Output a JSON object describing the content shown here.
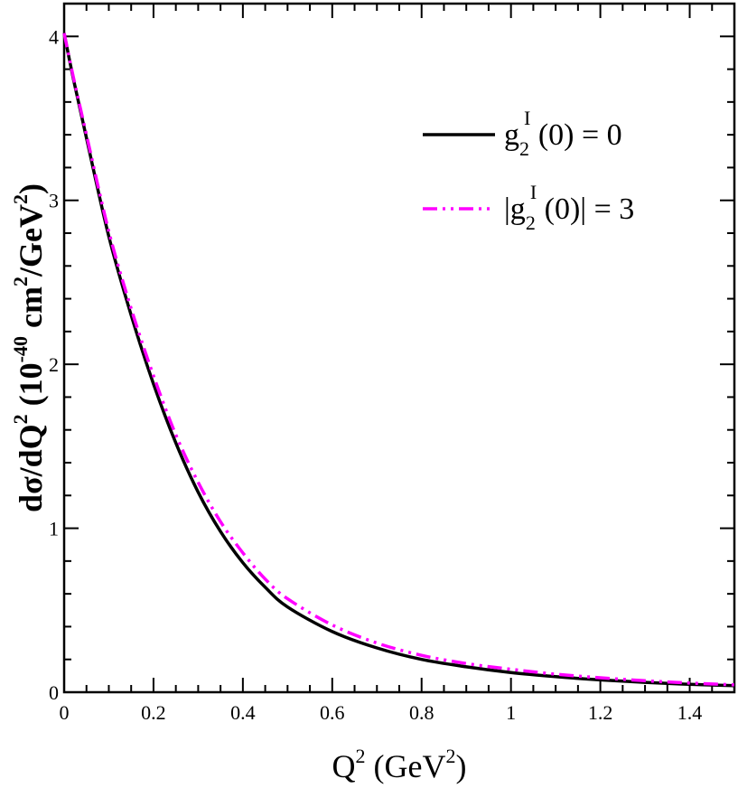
{
  "chart_data": {
    "type": "line",
    "xlabel": {
      "base": "Q",
      "sup": "2",
      "unit_open": " (GeV",
      "unit_sup": "2",
      "unit_close": ")"
    },
    "ylabel": {
      "part1": "dσ/dQ",
      "sup1": "2",
      "part2": " (10",
      "sup2": "-40",
      "part3": " cm",
      "sup3": "2",
      "part4": "/GeV",
      "sup4": "2",
      "part5": ")"
    },
    "xlim": [
      0,
      1.5
    ],
    "ylim": [
      0,
      4.2
    ],
    "x_major_ticks": [
      0,
      0.2,
      0.4,
      0.6,
      0.8,
      1,
      1.2,
      1.4
    ],
    "x_tick_labels": [
      "0",
      "0.2",
      "0.4",
      "0.6",
      "0.8",
      "1",
      "1.2",
      "1.4"
    ],
    "y_major_ticks": [
      0,
      1,
      2,
      3,
      4
    ],
    "y_tick_labels": [
      "0",
      "1",
      "2",
      "3",
      "4"
    ],
    "grid": false,
    "legend_position": "top-right",
    "series": [
      {
        "name": {
          "pre": "g",
          "sub": "2",
          "sup": "I",
          "post": " (0) = 0"
        },
        "color": "#000000",
        "dash": "solid",
        "x": [
          0,
          0.02,
          0.05,
          0.1,
          0.15,
          0.2,
          0.25,
          0.3,
          0.35,
          0.4,
          0.45,
          0.5,
          0.6,
          0.7,
          0.8,
          0.9,
          1.0,
          1.1,
          1.2,
          1.3,
          1.4,
          1.5
        ],
        "y": [
          4.02,
          3.75,
          3.38,
          2.78,
          2.3,
          1.88,
          1.52,
          1.22,
          0.98,
          0.79,
          0.64,
          0.52,
          0.37,
          0.27,
          0.2,
          0.155,
          0.12,
          0.095,
          0.075,
          0.06,
          0.048,
          0.04
        ]
      },
      {
        "name": {
          "pre": "|g",
          "sub": "2",
          "sup": "I",
          "post": " (0)| = 3"
        },
        "color": "#ff00ff",
        "dash": "dash-dot-dot",
        "x": [
          0,
          0.02,
          0.05,
          0.1,
          0.15,
          0.2,
          0.25,
          0.3,
          0.35,
          0.4,
          0.45,
          0.5,
          0.6,
          0.7,
          0.8,
          0.9,
          1.0,
          1.1,
          1.2,
          1.3,
          1.4,
          1.5
        ],
        "y": [
          4.02,
          3.76,
          3.4,
          2.81,
          2.34,
          1.93,
          1.57,
          1.28,
          1.04,
          0.85,
          0.69,
          0.57,
          0.41,
          0.3,
          0.225,
          0.175,
          0.14,
          0.11,
          0.088,
          0.07,
          0.056,
          0.045
        ]
      }
    ]
  }
}
